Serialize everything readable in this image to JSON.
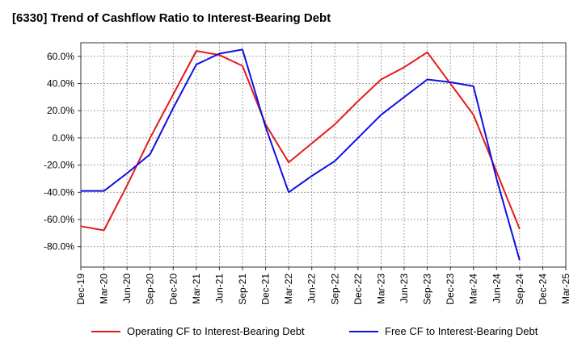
{
  "title": "[6330]  Trend of Cashflow Ratio to Interest-Bearing Debt",
  "colors": {
    "operating": "#e31a1c",
    "free": "#1010e0",
    "grid": "#8a8a8a"
  },
  "chart_data": {
    "type": "line",
    "title": "[6330]  Trend of Cashflow Ratio to Interest-Bearing Debt",
    "xlabel": "",
    "ylabel": "",
    "categories": [
      "Dec-19",
      "Mar-20",
      "Jun-20",
      "Sep-20",
      "Dec-20",
      "Mar-21",
      "Jun-21",
      "Sep-21",
      "Dec-21",
      "Mar-22",
      "Jun-22",
      "Sep-22",
      "Dec-22",
      "Mar-23",
      "Jun-23",
      "Sep-23",
      "Dec-23",
      "Mar-24",
      "Jun-24",
      "Sep-24",
      "Dec-24",
      "Mar-25"
    ],
    "ylim": [
      -95,
      70
    ],
    "yticks": [
      60,
      40,
      20,
      0,
      -20,
      -40,
      -60,
      -80
    ],
    "ytick_labels": [
      "60.0%",
      "40.0%",
      "20.0%",
      "0.0%",
      "-20.0%",
      "-40.0%",
      "-60.0%",
      "-80.0%"
    ],
    "grid": true,
    "legend_position": "bottom",
    "series": [
      {
        "name": "Operating CF to Interest-Bearing Debt",
        "color": "#e31a1c",
        "values": [
          -65,
          -68,
          -35,
          0,
          32,
          64,
          61,
          53,
          10,
          -18,
          -4,
          10,
          27,
          43,
          52,
          63,
          40,
          17,
          -25,
          -67,
          null,
          null
        ]
      },
      {
        "name": "Free CF to Interest-Bearing Debt",
        "color": "#1010e0",
        "values": [
          -39,
          -39,
          -26,
          -12,
          22,
          54,
          62,
          65,
          8,
          -40,
          -28,
          -17,
          0,
          17,
          30,
          43,
          41,
          38,
          -30,
          -90,
          null,
          null
        ]
      }
    ]
  }
}
